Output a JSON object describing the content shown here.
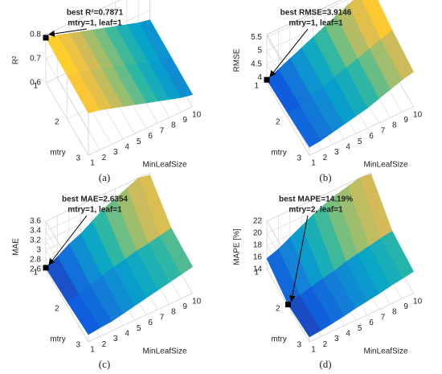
{
  "chart_data": [
    {
      "type": "surface",
      "label": "(a)",
      "zlabel": "R²",
      "xlabel": "MinLeafSize",
      "ylabel": "mtry",
      "xlim": [
        1,
        10
      ],
      "xticks": [
        1,
        2,
        3,
        4,
        5,
        6,
        7,
        8,
        9,
        10
      ],
      "ylim": [
        1,
        3
      ],
      "yticks": [
        1,
        2,
        3
      ],
      "zlim": [
        0.6,
        0.8
      ],
      "zticks": [
        0.6,
        0.7,
        0.8
      ],
      "z": [
        [
          0.7871,
          0.775,
          0.76,
          0.745,
          0.73,
          0.715,
          0.7,
          0.685,
          0.67,
          0.66
        ],
        [
          0.78,
          0.77,
          0.755,
          0.74,
          0.725,
          0.71,
          0.695,
          0.68,
          0.665,
          0.655
        ],
        [
          0.775,
          0.765,
          0.75,
          0.735,
          0.72,
          0.705,
          0.69,
          0.675,
          0.66,
          0.65
        ]
      ],
      "annotation": [
        "best R²=0.7871",
        "mtry=1, leaf=1"
      ],
      "best": {
        "x": 1,
        "y": 1,
        "z": 0.7871
      }
    },
    {
      "type": "surface",
      "label": "(b)",
      "zlabel": "RMSE",
      "xlabel": "MinLeafSize",
      "ylabel": "mtry",
      "xlim": [
        1,
        10
      ],
      "xticks": [
        1,
        2,
        3,
        4,
        5,
        6,
        7,
        8,
        9,
        10
      ],
      "ylim": [
        1,
        3
      ],
      "yticks": [
        1,
        2,
        3
      ],
      "zlim": [
        3.8,
        5.6
      ],
      "zticks": [
        4,
        4.5,
        5,
        5.5
      ],
      "z": [
        [
          3.9146,
          4.1,
          4.3,
          4.5,
          4.7,
          4.9,
          5.1,
          5.3,
          5.45,
          5.6
        ],
        [
          4.0,
          4.1,
          4.25,
          4.4,
          4.55,
          4.7,
          4.85,
          5.0,
          5.15,
          5.3
        ],
        [
          4.1,
          4.15,
          4.25,
          4.35,
          4.45,
          4.55,
          4.7,
          4.85,
          5.0,
          5.1
        ]
      ],
      "annotation": [
        "best RMSE=3.9146",
        "mtry=1, leaf=1"
      ],
      "best": {
        "x": 1,
        "y": 1,
        "z": 3.9146
      }
    },
    {
      "type": "surface",
      "label": "(c)",
      "zlabel": "MAE",
      "xlabel": "MinLeafSize",
      "ylabel": "mtry",
      "xlim": [
        1,
        10
      ],
      "xticks": [
        1,
        2,
        3,
        4,
        5,
        6,
        7,
        8,
        9,
        10
      ],
      "ylim": [
        1,
        3
      ],
      "yticks": [
        1,
        2,
        3
      ],
      "zlim": [
        2.6,
        3.6
      ],
      "zticks": [
        2.6,
        2.8,
        3,
        3.2,
        3.4,
        3.6
      ],
      "z": [
        [
          2.6354,
          2.75,
          2.9,
          3.0,
          3.15,
          3.3,
          3.4,
          3.5,
          3.6,
          3.55
        ],
        [
          2.68,
          2.72,
          2.8,
          2.88,
          2.95,
          3.0,
          3.06,
          3.1,
          3.15,
          3.2
        ],
        [
          2.75,
          2.78,
          2.8,
          2.85,
          2.9,
          2.95,
          3.0,
          3.05,
          3.1,
          3.15
        ]
      ],
      "annotation": [
        "best MAE=2.6354",
        "mtry=1, leaf=1"
      ],
      "best": {
        "x": 1,
        "y": 1,
        "z": 2.6354
      }
    },
    {
      "type": "surface",
      "label": "(d)",
      "zlabel": "MAPE [%]",
      "xlabel": "MinLeafSize",
      "ylabel": "mtry",
      "xlim": [
        1,
        10
      ],
      "xticks": [
        1,
        2,
        3,
        4,
        5,
        6,
        7,
        8,
        9,
        10
      ],
      "ylim": [
        1,
        3
      ],
      "yticks": [
        1,
        2,
        3
      ],
      "zlim": [
        14,
        22
      ],
      "zticks": [
        14,
        16,
        18,
        20,
        22
      ],
      "z": [
        [
          15.8,
          16.5,
          17.5,
          18.5,
          19.5,
          20.3,
          21,
          21.5,
          22,
          21.8
        ],
        [
          14.19,
          14.8,
          15.3,
          15.8,
          16.2,
          16.8,
          17.2,
          17.6,
          18,
          18.3
        ],
        [
          14.8,
          15,
          15.3,
          15.6,
          16,
          16.3,
          16.6,
          17,
          17.3,
          17.6
        ]
      ],
      "annotation": [
        "best MAPE=14.19%",
        "mtry=2, leaf=1"
      ],
      "best": {
        "x": 1,
        "y": 2,
        "z": 14.19
      }
    }
  ]
}
